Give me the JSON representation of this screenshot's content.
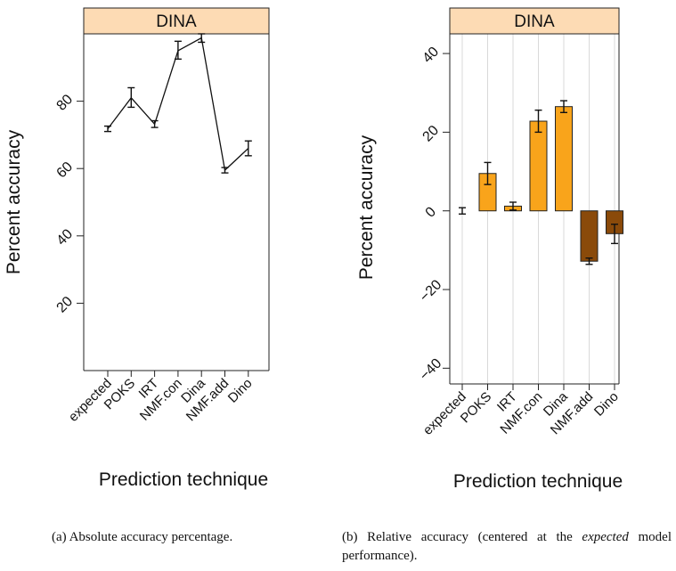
{
  "chart_data": [
    {
      "type": "line",
      "panel_title": "DINA",
      "xlabel": "Prediction technique",
      "ylabel": "Percent accuracy",
      "categories": [
        "expected",
        "POKS",
        "IRT",
        "NMF.con",
        "Dina",
        "NMF.add",
        "Dino"
      ],
      "values": [
        71.8,
        81.0,
        73.2,
        95.0,
        98.8,
        59.5,
        66.0
      ],
      "err_low": [
        71.0,
        78.2,
        72.2,
        92.5,
        97.5,
        58.7,
        63.8
      ],
      "err_high": [
        72.6,
        84.0,
        74.2,
        97.8,
        100.0,
        60.3,
        68.2
      ],
      "ylim": [
        0,
        100
      ],
      "yticks": [
        20,
        40,
        60,
        80
      ],
      "grid": false,
      "line_color": "#111111"
    },
    {
      "type": "bar",
      "panel_title": "DINA",
      "xlabel": "Prediction technique",
      "ylabel": "Percent accuracy",
      "categories": [
        "expected",
        "POKS",
        "IRT",
        "NMF.con",
        "Dina",
        "NMF.add",
        "Dino"
      ],
      "values": [
        0.0,
        9.5,
        1.2,
        22.8,
        26.5,
        -12.8,
        -5.8
      ],
      "err_low": [
        -0.8,
        6.7,
        0.2,
        20.0,
        25.0,
        -13.6,
        -8.3
      ],
      "err_high": [
        0.8,
        12.3,
        2.2,
        25.6,
        28.0,
        -12.0,
        -3.4
      ],
      "ylim": [
        -44,
        45
      ],
      "yticks": [
        -40,
        -20,
        0,
        20,
        40
      ],
      "grid": "vertical",
      "positive_color": "#f9a41b",
      "negative_color": "#8a4a0a"
    }
  ],
  "captions": {
    "a": "(a)  Absolute accuracy percentage.",
    "b_prefix": "(b)  Relative accuracy (centered at the ",
    "b_emphasis": "expected",
    "b_suffix": " model performance)."
  },
  "colors": {
    "strip_fill": "#fddbb4",
    "strip_border": "#222222"
  }
}
